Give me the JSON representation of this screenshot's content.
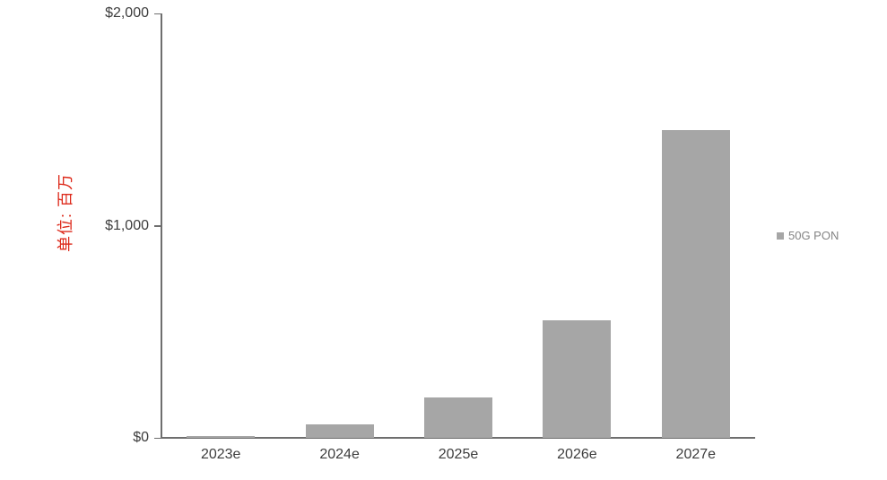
{
  "chart_data": {
    "type": "bar",
    "categories": [
      "2023e",
      "2024e",
      "2025e",
      "2026e",
      "2027e"
    ],
    "series": [
      {
        "name": "50G PON",
        "values": [
          10,
          65,
          190,
          555,
          1450
        ]
      }
    ],
    "title": "",
    "xlabel": "",
    "ylabel": "单位: 百万",
    "ylim": [
      0,
      2000
    ],
    "yticks": [
      {
        "value": 0,
        "label": "$0"
      },
      {
        "value": 1000,
        "label": "$1,000"
      },
      {
        "value": 2000,
        "label": "$2,000"
      }
    ],
    "grid": false,
    "legend_position": "right",
    "bar_color": "#a6a6a6"
  },
  "colors": {
    "bar": "#a6a6a6",
    "axis": "#6e6e6e",
    "tick_label": "#3d3d3d",
    "legend_text": "#848484",
    "ylabel_red": "#dd2a1b",
    "background": "#ffffff"
  }
}
